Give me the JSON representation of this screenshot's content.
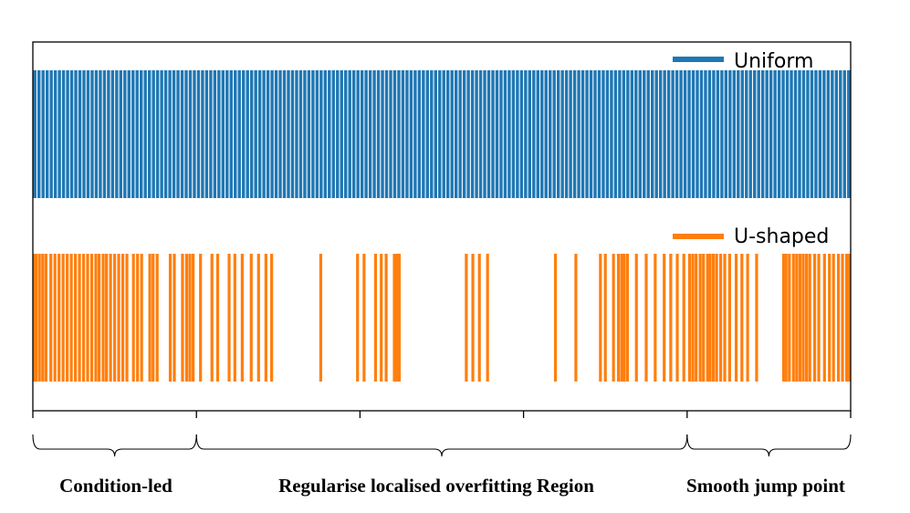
{
  "chart_data": {
    "type": "bar",
    "xlim": [
      0,
      1
    ],
    "grid": false,
    "legend_placement": "top-right per panel",
    "series": [
      {
        "name": "Uniform",
        "color": "#1f77b4",
        "count": 200,
        "x_positions": "evenly spaced across [0, 1]"
      },
      {
        "name": "U-shaped",
        "color": "#ff7f0e",
        "x_positions": [
          0.0,
          0.004,
          0.008,
          0.012,
          0.016,
          0.022,
          0.027,
          0.032,
          0.037,
          0.042,
          0.047,
          0.052,
          0.057,
          0.062,
          0.067,
          0.072,
          0.077,
          0.081,
          0.086,
          0.09,
          0.095,
          0.1,
          0.105,
          0.11,
          0.115,
          0.123,
          0.128,
          0.133,
          0.143,
          0.147,
          0.152,
          0.168,
          0.173,
          0.183,
          0.188,
          0.192,
          0.196,
          0.205,
          0.219,
          0.226,
          0.24,
          0.247,
          0.256,
          0.267,
          0.276,
          0.285,
          0.292,
          0.352,
          0.397,
          0.405,
          0.419,
          0.426,
          0.432,
          0.442,
          0.445,
          0.448,
          0.53,
          0.538,
          0.546,
          0.556,
          0.639,
          0.664,
          0.694,
          0.7,
          0.71,
          0.716,
          0.72,
          0.723,
          0.727,
          0.738,
          0.75,
          0.761,
          0.772,
          0.78,
          0.788,
          0.796,
          0.803,
          0.807,
          0.811,
          0.816,
          0.82,
          0.825,
          0.828,
          0.832,
          0.836,
          0.841,
          0.846,
          0.852,
          0.86,
          0.867,
          0.874,
          0.885,
          0.918,
          0.921,
          0.925,
          0.93,
          0.934,
          0.938,
          0.942,
          0.946,
          0.95,
          0.956,
          0.961,
          0.968,
          0.974,
          0.979,
          0.985,
          0.99,
          0.995,
          1.0
        ]
      }
    ],
    "xticks": [
      0,
      0.2,
      0.4,
      0.6,
      0.8,
      1.0
    ],
    "regions": [
      {
        "label": "Condition-led",
        "start": 0.0,
        "end": 0.2
      },
      {
        "label": "Regularise localised overfitting Region",
        "start": 0.2,
        "end": 0.8
      },
      {
        "label": "Smooth jump point",
        "start": 0.8,
        "end": 1.0
      }
    ]
  }
}
